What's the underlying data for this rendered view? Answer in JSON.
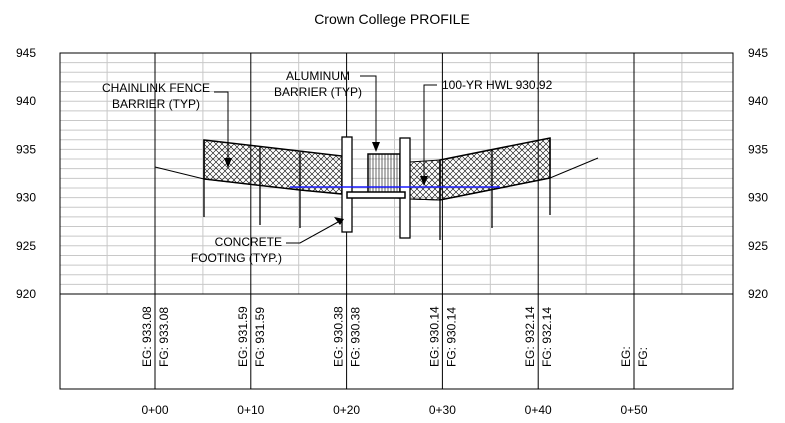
{
  "title": "Crown College PROFILE",
  "left_axis_labels": [
    "945",
    "940",
    "935",
    "930",
    "925",
    "920"
  ],
  "right_axis_labels": [
    "945",
    "940",
    "935",
    "930",
    "925",
    "920"
  ],
  "stations": [
    {
      "label": "0+00",
      "eg": "EG: 933.08",
      "fg": "FG: 933.08"
    },
    {
      "label": "0+10",
      "eg": "EG: 931.59",
      "fg": "FG: 931.59"
    },
    {
      "label": "0+20",
      "eg": "EG: 930.38",
      "fg": "FG: 930.38"
    },
    {
      "label": "0+30",
      "eg": "EG: 930.14",
      "fg": "FG: 930.14"
    },
    {
      "label": "0+40",
      "eg": "EG: 932.14",
      "fg": "FG: 932.14"
    },
    {
      "label": "0+50",
      "eg": "EG:",
      "fg": "FG:"
    }
  ],
  "callouts": {
    "chainlink": [
      "CHAINLINK FENCE",
      "BARRIER (TYP)"
    ],
    "aluminum": [
      "ALUMINUM",
      "BARRIER (TYP)"
    ],
    "hwl": "100-YR HWL 930.92",
    "footing": [
      "CONCRETE",
      "FOOTING (TYP.)"
    ]
  }
}
